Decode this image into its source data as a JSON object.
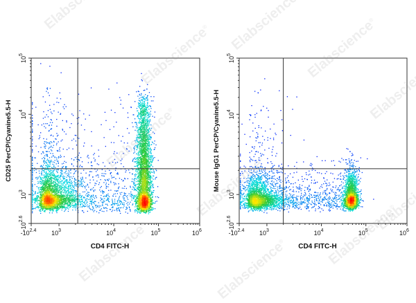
{
  "watermark": {
    "text": "Elabscience",
    "mark": "®"
  },
  "chart_data": [
    {
      "type": "scatter",
      "title": "",
      "xlabel": "CD4 FITC-H",
      "ylabel": "CD25 PerCP/Cyanine5.5-H",
      "x_scale": "biexponential",
      "y_scale": "biexponential",
      "xlim": [
        -251,
        1000000
      ],
      "ylim": [
        -398,
        100000
      ],
      "x_ticks": [
        {
          "value": -251,
          "base": "-10",
          "exp": "2.4"
        },
        {
          "value": 1000,
          "base": "10",
          "exp": "3"
        },
        {
          "value": 10000,
          "base": "10",
          "exp": "4"
        },
        {
          "value": 100000,
          "base": "10",
          "exp": "5"
        },
        {
          "value": 1000000,
          "base": "10",
          "exp": "6"
        }
      ],
      "y_ticks": [
        {
          "value": -398,
          "base": "-10",
          "exp": "2.6"
        },
        {
          "value": 1000,
          "base": "10",
          "exp": "3"
        },
        {
          "value": 10000,
          "base": "10",
          "exp": "4"
        },
        {
          "value": 100000,
          "base": "10",
          "exp": "5"
        }
      ],
      "gate": {
        "x": 2200,
        "y": 2100
      },
      "grid": false,
      "legend": "none",
      "colors": {
        "low": "#0000ff",
        "mid": "#00e5e5",
        "mid2": "#ffff00",
        "high": "#ff0000"
      },
      "populations": [
        {
          "name": "CD4-negative",
          "x_center": 700,
          "y_center": 870,
          "x_spread": 0.28,
          "y_spread": 0.2,
          "count": 2600
        },
        {
          "name": "CD4-positive",
          "x_center": 48000,
          "y_center": 1000,
          "x_spread": 0.09,
          "y_spread": 0.3,
          "count": 2400
        },
        {
          "name": "CD4-positive CD25-positive",
          "x_center": 46000,
          "y_center": 5000,
          "x_spread": 0.08,
          "y_spread": 0.32,
          "count": 1300
        },
        {
          "name": "CD4-negative scatter",
          "x_center": 700,
          "y_center": 3000,
          "x_spread": 0.3,
          "y_spread": 0.45,
          "count": 320
        },
        {
          "name": "intermediate",
          "x_center": 6000,
          "y_center": 900,
          "x_spread": 0.35,
          "y_spread": 0.28,
          "count": 380
        }
      ]
    },
    {
      "type": "scatter",
      "title": "",
      "xlabel": "CD4 FITC-H",
      "ylabel": "Mouse IgG1 PerCP/Cyanine5.5-H",
      "x_scale": "biexponential",
      "y_scale": "biexponential",
      "xlim": [
        -251,
        1000000
      ],
      "ylim": [
        -398,
        100000
      ],
      "x_ticks": [
        {
          "value": -251,
          "base": "-10",
          "exp": "2.4"
        },
        {
          "value": 1000,
          "base": "10",
          "exp": "3"
        },
        {
          "value": 10000,
          "base": "10",
          "exp": "4"
        },
        {
          "value": 100000,
          "base": "10",
          "exp": "5"
        },
        {
          "value": 1000000,
          "base": "10",
          "exp": "6"
        }
      ],
      "y_ticks": [
        {
          "value": -398,
          "base": "-10",
          "exp": "2.6"
        },
        {
          "value": 1000,
          "base": "10",
          "exp": "3"
        },
        {
          "value": 10000,
          "base": "10",
          "exp": "4"
        },
        {
          "value": 100000,
          "base": "10",
          "exp": "5"
        }
      ],
      "gate": {
        "x": 2000,
        "y": 2100
      },
      "grid": false,
      "legend": "none",
      "colors": {
        "low": "#0000ff",
        "mid": "#00e5e5",
        "mid2": "#ffff00",
        "high": "#ff0000"
      },
      "populations": [
        {
          "name": "CD4-negative",
          "x_center": 650,
          "y_center": 800,
          "x_spread": 0.28,
          "y_spread": 0.18,
          "count": 2600
        },
        {
          "name": "CD4-positive",
          "x_center": 46000,
          "y_center": 850,
          "x_spread": 0.08,
          "y_spread": 0.2,
          "count": 2300
        },
        {
          "name": "CD4-negative scatter",
          "x_center": 700,
          "y_center": 2500,
          "x_spread": 0.3,
          "y_spread": 0.45,
          "count": 180
        },
        {
          "name": "intermediate",
          "x_center": 7000,
          "y_center": 850,
          "x_spread": 0.35,
          "y_spread": 0.22,
          "count": 380
        }
      ]
    }
  ]
}
